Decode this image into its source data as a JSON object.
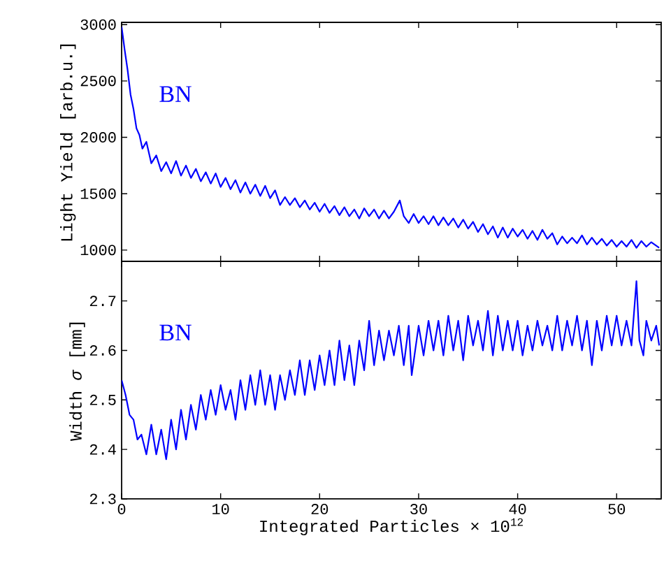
{
  "chart_data": [
    {
      "type": "line",
      "ylabel": "Light Yield [arb.u.]",
      "annotations": [
        "BN"
      ],
      "xlim": [
        0,
        54.5
      ],
      "ylim": [
        900,
        3020
      ],
      "xticks": [
        0,
        10,
        20,
        30,
        40,
        50
      ],
      "yticks": [
        1000,
        1500,
        2000,
        2500,
        3000
      ],
      "tick_labels": "y",
      "grid": false,
      "marker": "none",
      "line_style": "solid",
      "series": [
        {
          "color": "#0000ff",
          "x": [
            0,
            0.3,
            0.6,
            0.9,
            1.2,
            1.5,
            1.8,
            2.1,
            2.5,
            3,
            3.5,
            4,
            4.5,
            5,
            5.5,
            6,
            6.5,
            7,
            7.5,
            8,
            8.5,
            9,
            9.5,
            10,
            10.5,
            11,
            11.5,
            12,
            12.5,
            13,
            13.5,
            14,
            14.5,
            15,
            15.5,
            16,
            16.5,
            17,
            17.5,
            18,
            18.5,
            19,
            19.5,
            20,
            20.5,
            21,
            21.5,
            22,
            22.5,
            23,
            23.5,
            24,
            24.5,
            25,
            25.5,
            26,
            26.5,
            27,
            27.5,
            28.1,
            28.5,
            29,
            29.5,
            30,
            30.5,
            31,
            31.5,
            32,
            32.5,
            33,
            33.5,
            34,
            34.5,
            35,
            35.5,
            36,
            36.5,
            37,
            37.5,
            38,
            38.5,
            39,
            39.5,
            40,
            40.5,
            41,
            41.5,
            42,
            42.5,
            43,
            43.5,
            44,
            44.5,
            45,
            45.5,
            46,
            46.5,
            47,
            47.5,
            48,
            48.5,
            49,
            49.5,
            50,
            50.5,
            51,
            51.5,
            52,
            52.5,
            53,
            53.5,
            54.3
          ],
          "values": [
            2980,
            2780,
            2600,
            2380,
            2250,
            2080,
            2020,
            1900,
            1960,
            1770,
            1840,
            1700,
            1780,
            1680,
            1790,
            1660,
            1750,
            1640,
            1720,
            1610,
            1690,
            1590,
            1680,
            1560,
            1640,
            1540,
            1620,
            1510,
            1600,
            1500,
            1580,
            1480,
            1570,
            1460,
            1530,
            1400,
            1470,
            1400,
            1460,
            1380,
            1440,
            1360,
            1420,
            1340,
            1410,
            1330,
            1390,
            1310,
            1380,
            1300,
            1360,
            1280,
            1370,
            1300,
            1360,
            1280,
            1350,
            1280,
            1340,
            1440,
            1300,
            1240,
            1320,
            1240,
            1300,
            1230,
            1300,
            1220,
            1290,
            1220,
            1280,
            1200,
            1270,
            1190,
            1250,
            1160,
            1230,
            1140,
            1210,
            1110,
            1200,
            1110,
            1190,
            1120,
            1180,
            1100,
            1170,
            1090,
            1180,
            1100,
            1150,
            1050,
            1120,
            1060,
            1110,
            1060,
            1130,
            1050,
            1110,
            1050,
            1100,
            1040,
            1090,
            1030,
            1080,
            1030,
            1090,
            1020,
            1080,
            1030,
            1070,
            1020
          ]
        }
      ]
    },
    {
      "type": "line",
      "xlabel": "Integrated Particles × 10$^{12}$",
      "ylabel": "Width *σ* [mm]",
      "annotations": [
        "BN"
      ],
      "xlim": [
        0,
        54.5
      ],
      "ylim": [
        2.3,
        2.78
      ],
      "xticks": [
        0,
        10,
        20,
        30,
        40,
        50
      ],
      "yticks": [
        2.3,
        2.4,
        2.5,
        2.6,
        2.7
      ],
      "grid": false,
      "marker": "none",
      "line_style": "solid",
      "series": [
        {
          "color": "#0000ff",
          "x": [
            0,
            0.4,
            0.8,
            1.2,
            1.6,
            2,
            2.5,
            3,
            3.5,
            4,
            4.5,
            5,
            5.5,
            6,
            6.5,
            7,
            7.5,
            8,
            8.5,
            9,
            9.5,
            10,
            10.5,
            11,
            11.5,
            12,
            12.5,
            13,
            13.5,
            14,
            14.5,
            15,
            15.5,
            16,
            16.5,
            17,
            17.5,
            18,
            18.5,
            19,
            19.5,
            20,
            20.5,
            21,
            21.5,
            22,
            22.5,
            23,
            23.5,
            24,
            24.5,
            25,
            25.5,
            26,
            26.5,
            27,
            27.5,
            28,
            28.5,
            29,
            29.3,
            30,
            30.5,
            31,
            31.5,
            32,
            32.5,
            33,
            33.5,
            34,
            34.5,
            35,
            35.5,
            36,
            36.5,
            37,
            37.5,
            38,
            38.5,
            39,
            39.5,
            40,
            40.5,
            41,
            41.5,
            42,
            42.5,
            43,
            43.5,
            44,
            44.5,
            45,
            45.5,
            46,
            46.5,
            47,
            47.5,
            48,
            48.5,
            49,
            49.5,
            50,
            50.5,
            51,
            51.5,
            52,
            52.3,
            52.7,
            53,
            53.5,
            54,
            54.3
          ],
          "values": [
            2.54,
            2.51,
            2.47,
            2.46,
            2.42,
            2.43,
            2.39,
            2.45,
            2.39,
            2.44,
            2.38,
            2.46,
            2.4,
            2.48,
            2.42,
            2.49,
            2.44,
            2.51,
            2.46,
            2.52,
            2.47,
            2.53,
            2.48,
            2.52,
            2.46,
            2.54,
            2.48,
            2.55,
            2.49,
            2.56,
            2.49,
            2.55,
            2.48,
            2.55,
            2.5,
            2.56,
            2.51,
            2.58,
            2.51,
            2.58,
            2.52,
            2.59,
            2.53,
            2.6,
            2.53,
            2.62,
            2.54,
            2.61,
            2.53,
            2.62,
            2.56,
            2.66,
            2.57,
            2.64,
            2.58,
            2.64,
            2.59,
            2.65,
            2.57,
            2.65,
            2.55,
            2.65,
            2.59,
            2.66,
            2.6,
            2.66,
            2.59,
            2.67,
            2.6,
            2.66,
            2.58,
            2.67,
            2.61,
            2.66,
            2.6,
            2.68,
            2.59,
            2.67,
            2.6,
            2.66,
            2.6,
            2.66,
            2.59,
            2.65,
            2.6,
            2.66,
            2.61,
            2.65,
            2.6,
            2.67,
            2.6,
            2.66,
            2.61,
            2.67,
            2.6,
            2.66,
            2.57,
            2.66,
            2.6,
            2.67,
            2.61,
            2.67,
            2.61,
            2.66,
            2.61,
            2.74,
            2.62,
            2.59,
            2.66,
            2.62,
            2.65,
            2.61
          ]
        }
      ]
    }
  ]
}
